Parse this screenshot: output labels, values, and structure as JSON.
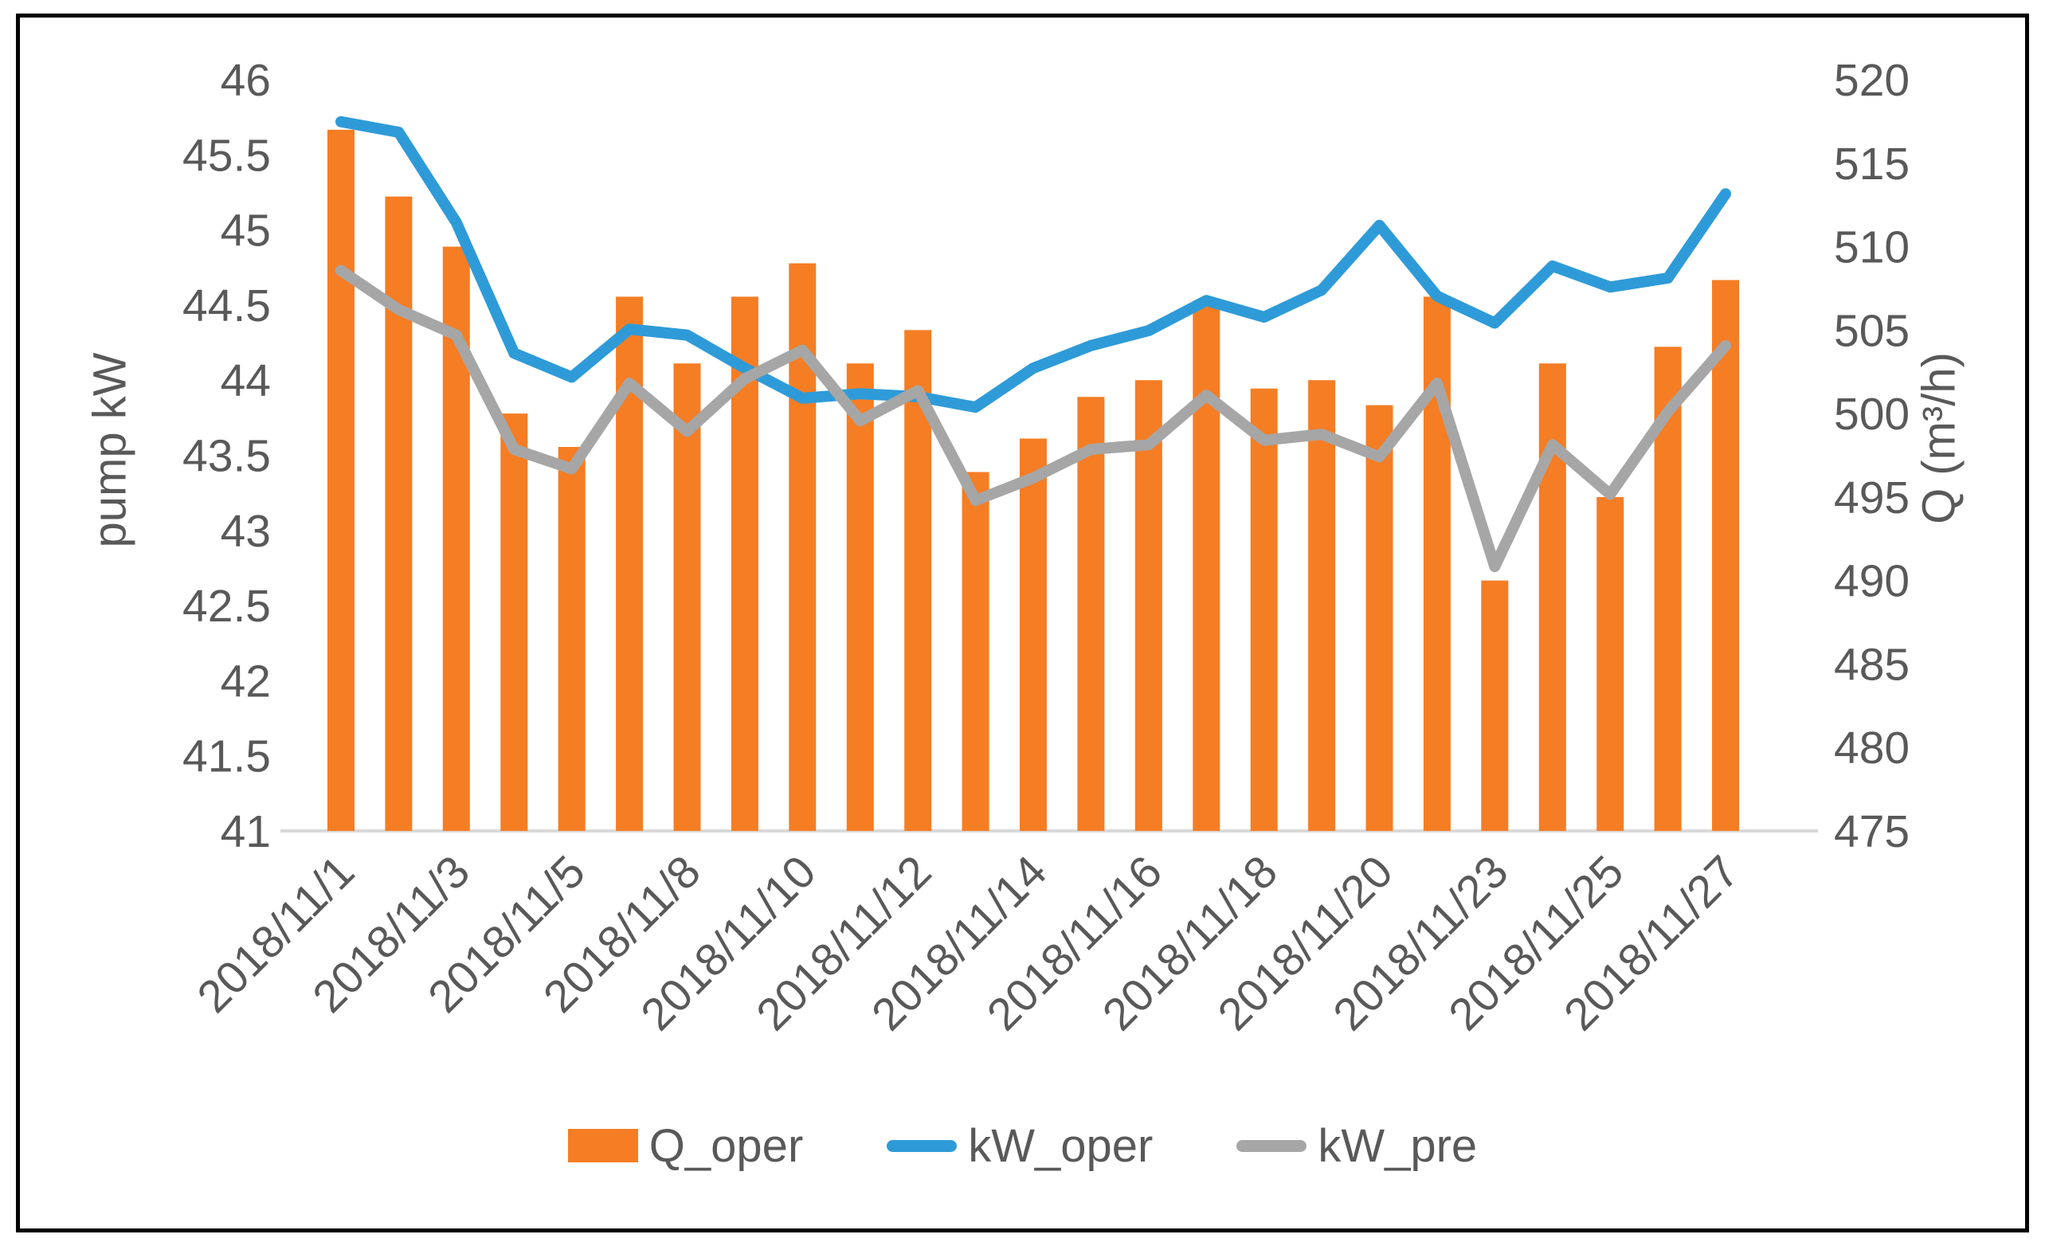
{
  "colors": {
    "background": "#ffffff",
    "frame_border": "#000000",
    "text": "#595959",
    "axis_line": "#d9d9d9",
    "bar_orange": "#f57d24",
    "line_blue": "#2e9bd8",
    "line_gray": "#a6a6a6"
  },
  "chart_data": {
    "type": "bar",
    "subtype": "combo-bar-line-dual-axis",
    "title": "",
    "grid": false,
    "categories": [
      "2018/11/1",
      "",
      "2018/11/3",
      "",
      "2018/11/5",
      "",
      "2018/11/8",
      "",
      "2018/11/10",
      "",
      "2018/11/12",
      "",
      "2018/11/14",
      "",
      "2018/11/16",
      "",
      "2018/11/18",
      "",
      "2018/11/20",
      "",
      "2018/11/23",
      "",
      "2018/11/25",
      "",
      "2018/11/27"
    ],
    "x_tick_labels": [
      "2018/11/1",
      "2018/11/3",
      "2018/11/5",
      "2018/11/8",
      "2018/11/10",
      "2018/11/12",
      "2018/11/14",
      "2018/11/16",
      "2018/11/18",
      "2018/11/20",
      "2018/11/23",
      "2018/11/25",
      "2018/11/27"
    ],
    "series": [
      {
        "name": "Q_oper",
        "type": "bar",
        "axis": "right",
        "color": "#f57d24",
        "values": [
          517,
          513,
          510,
          500,
          498,
          507,
          503,
          507,
          509,
          503,
          505,
          496.5,
          498.5,
          501,
          502,
          506.5,
          501.5,
          502,
          500.5,
          507,
          490,
          503,
          495,
          504,
          508
        ]
      },
      {
        "name": "kW_oper",
        "type": "line",
        "axis": "left",
        "color": "#2e9bd8",
        "values": [
          45.72,
          45.65,
          45.05,
          44.18,
          44.02,
          44.34,
          44.3,
          44.08,
          43.88,
          43.91,
          43.89,
          43.82,
          44.08,
          44.23,
          44.33,
          44.53,
          44.42,
          44.6,
          45.03,
          44.56,
          44.38,
          44.76,
          44.62,
          44.68,
          45.24
        ]
      },
      {
        "name": "kW_pre",
        "type": "line",
        "axis": "left",
        "color": "#a6a6a6",
        "values": [
          44.73,
          44.47,
          44.3,
          43.54,
          43.41,
          43.98,
          43.66,
          44.01,
          44.2,
          43.73,
          43.93,
          43.2,
          43.35,
          43.54,
          43.57,
          43.9,
          43.6,
          43.64,
          43.49,
          43.98,
          42.76,
          43.57,
          43.24,
          43.79,
          44.23
        ]
      }
    ],
    "left_axis": {
      "title": "pump kW",
      "min": 41,
      "max": 46,
      "step": 0.5,
      "ticks": [
        "46",
        "45.5",
        "45",
        "44.5",
        "44",
        "43.5",
        "43",
        "42.5",
        "42",
        "41.5",
        "41"
      ]
    },
    "right_axis": {
      "title": "Q (m³/h)",
      "min": 475,
      "max": 520,
      "step": 5,
      "ticks": [
        "520",
        "515",
        "510",
        "505",
        "500",
        "495",
        "490",
        "485",
        "480",
        "475"
      ]
    },
    "legend": {
      "position": "bottom",
      "entries": [
        "Q_oper",
        "kW_oper",
        "kW_pre"
      ]
    }
  }
}
